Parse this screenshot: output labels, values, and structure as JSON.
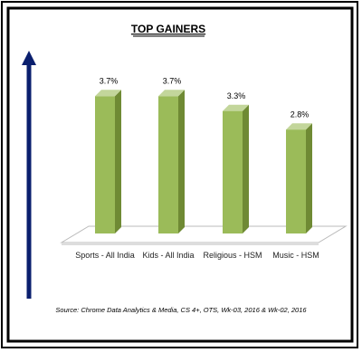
{
  "chart_data": {
    "type": "bar3d",
    "title": "TOP GAINERS",
    "categories": [
      "Sports - All India",
      "Kids - All India",
      "Religious - HSM",
      "Music - HSM"
    ],
    "values": [
      3.7,
      3.7,
      3.3,
      2.8
    ],
    "value_labels": [
      "3.7%",
      "3.7%",
      "3.3%",
      "2.8%"
    ],
    "color": "#9bbb59",
    "source": "Source: Chrome Data Analytics & Media, CS 4+, OTS, Wk-03, 2016 & Wk-02, 2016"
  }
}
